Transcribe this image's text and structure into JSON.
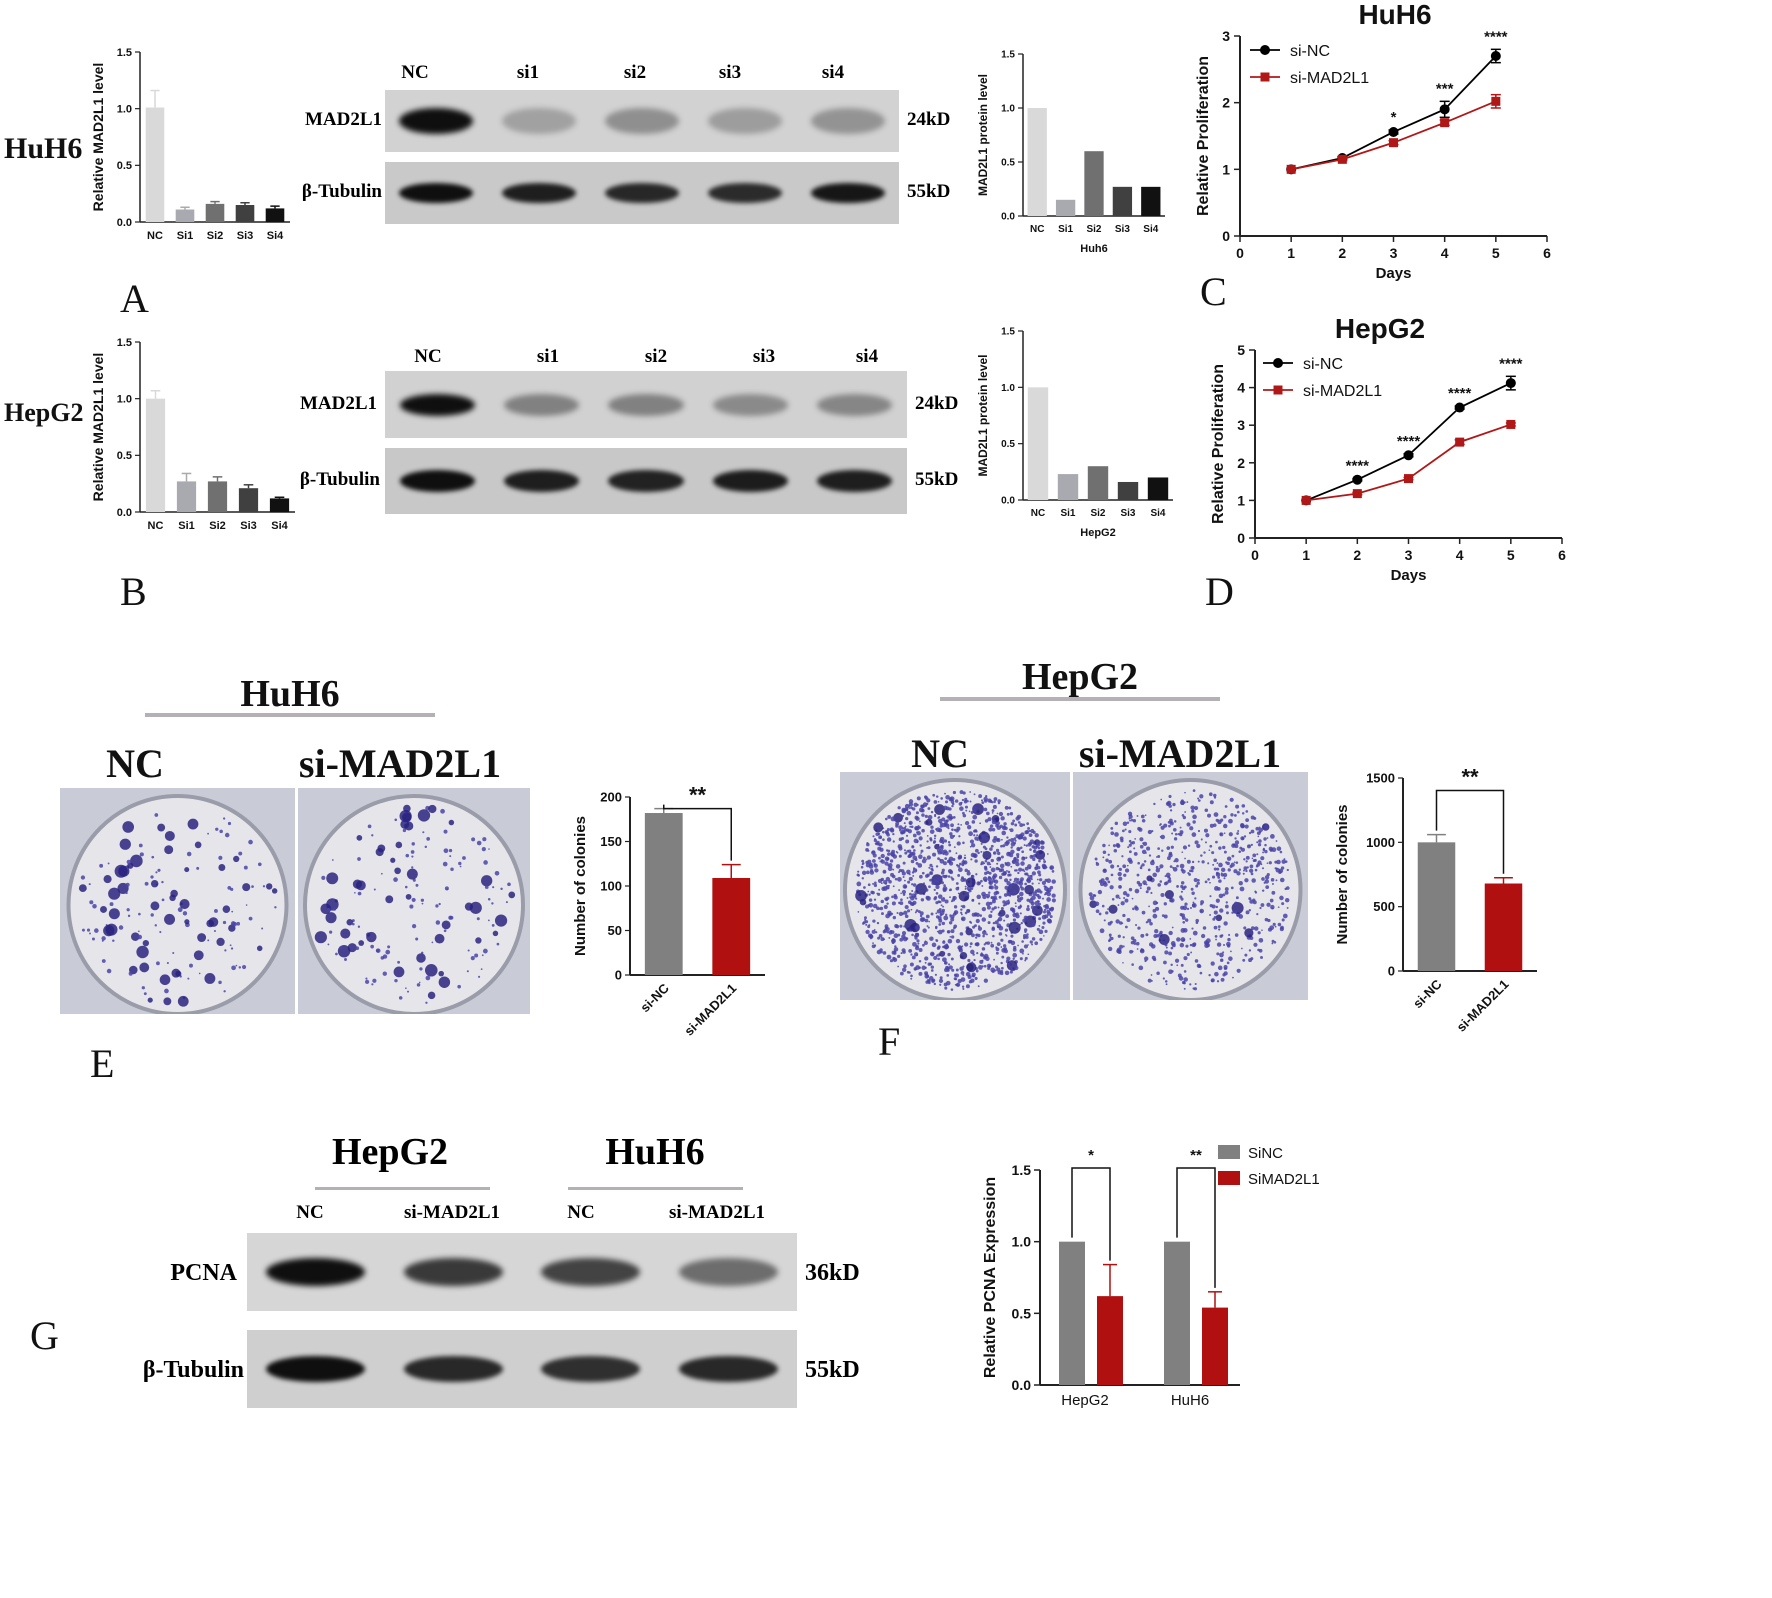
{
  "panels": {
    "A": {
      "letter": "A",
      "cell_label": "HuH6"
    },
    "B": {
      "letter": "B",
      "cell_label": "HepG2"
    },
    "C": {
      "letter": "C"
    },
    "D": {
      "letter": "D"
    },
    "E": {
      "letter": "E"
    },
    "F": {
      "letter": "F"
    },
    "G": {
      "letter": "G"
    }
  },
  "blot_A": {
    "lanes": [
      "NC",
      "si1",
      "si2",
      "si3",
      "si4"
    ],
    "rows": [
      "MAD2L1",
      "β-Tubulin"
    ],
    "sizes": [
      "24kD",
      "55kD"
    ],
    "mad2l1_intensity": [
      1.0,
      0.12,
      0.22,
      0.14,
      0.2
    ],
    "tubulin_intensity": [
      1.0,
      0.9,
      0.85,
      0.82,
      0.95
    ]
  },
  "blot_B": {
    "lanes": [
      "NC",
      "si1",
      "si2",
      "si3",
      "si4"
    ],
    "rows": [
      "MAD2L1",
      "β-Tubulin"
    ],
    "sizes": [
      "24kD",
      "55kD"
    ],
    "mad2l1_intensity": [
      1.0,
      0.3,
      0.3,
      0.25,
      0.28
    ],
    "tubulin_intensity": [
      1.0,
      0.9,
      0.88,
      0.92,
      0.9
    ]
  },
  "colony": {
    "E": {
      "group": "HuH6",
      "labels": [
        "NC",
        "si-MAD2L1"
      ]
    },
    "F": {
      "group": "HepG2",
      "labels": [
        "NC",
        "si-MAD2L1"
      ]
    }
  },
  "blot_G": {
    "groups": [
      "HepG2",
      "HuH6"
    ],
    "lanes": [
      "NC",
      "si-MAD2L1",
      "NC",
      "si-MAD2L1"
    ],
    "rows": [
      "PCNA",
      "β-Tubulin"
    ],
    "sizes": [
      "36kD",
      "55kD"
    ],
    "pcna_intensity": [
      1.0,
      0.75,
      0.7,
      0.45
    ],
    "tubulin_intensity": [
      1.0,
      0.85,
      0.8,
      0.85
    ]
  },
  "chart_data": [
    {
      "id": "A_qpcr",
      "type": "bar",
      "categories": [
        "NC",
        "Si1",
        "Si2",
        "Si3",
        "Si4"
      ],
      "values": [
        1.01,
        0.11,
        0.16,
        0.15,
        0.12
      ],
      "errors": [
        0.15,
        0.02,
        0.02,
        0.02,
        0.02
      ],
      "ylabel": "Relative MAD2L1 level",
      "ylim": [
        0,
        1.5
      ],
      "yticks": [
        "0.0",
        "0.5",
        "1.0",
        "1.5"
      ],
      "colors": [
        "#d9d9d9",
        "#a9a9b0",
        "#707070",
        "#404040",
        "#111111"
      ]
    },
    {
      "id": "A_protein",
      "type": "bar",
      "categories": [
        "NC",
        "Si1",
        "Si2",
        "Si3",
        "Si4"
      ],
      "values": [
        1.0,
        0.15,
        0.6,
        0.27,
        0.27
      ],
      "ylabel": "MAD2L1 protein level",
      "xlabel": "Huh6",
      "ylim": [
        0,
        1.5
      ],
      "yticks": [
        "0.0",
        "0.5",
        "1.0",
        "1.5"
      ],
      "colors": [
        "#d9d9d9",
        "#a9a9b0",
        "#707070",
        "#404040",
        "#111111"
      ]
    },
    {
      "id": "B_qpcr",
      "type": "bar",
      "categories": [
        "NC",
        "Si1",
        "Si2",
        "Si3",
        "Si4"
      ],
      "values": [
        1.0,
        0.27,
        0.27,
        0.21,
        0.12
      ],
      "errors": [
        0.07,
        0.07,
        0.04,
        0.03,
        0.01
      ],
      "ylabel": "Relative MAD2L1 level",
      "ylim": [
        0,
        1.5
      ],
      "yticks": [
        "0.0",
        "0.5",
        "1.0",
        "1.5"
      ],
      "colors": [
        "#d9d9d9",
        "#a9a9b0",
        "#707070",
        "#404040",
        "#111111"
      ]
    },
    {
      "id": "B_protein",
      "type": "bar",
      "categories": [
        "NC",
        "Si1",
        "Si2",
        "Si3",
        "Si4"
      ],
      "values": [
        1.0,
        0.23,
        0.3,
        0.16,
        0.2
      ],
      "ylabel": "MAD2L1 protein level",
      "xlabel": "HepG2",
      "ylim": [
        0,
        1.5
      ],
      "yticks": [
        "0.0",
        "0.5",
        "1.0",
        "1.5"
      ],
      "colors": [
        "#d9d9d9",
        "#a9a9b0",
        "#707070",
        "#404040",
        "#111111"
      ]
    },
    {
      "id": "C_prolif",
      "type": "line",
      "title": "HuH6",
      "x": [
        1,
        2,
        3,
        4,
        5
      ],
      "series": [
        {
          "name": "si-NC",
          "values": [
            1.0,
            1.17,
            1.56,
            1.9,
            2.7
          ],
          "errors": [
            0,
            0.02,
            0.03,
            0.12,
            0.1
          ],
          "color": "#000000",
          "marker": "circle"
        },
        {
          "name": "si-MAD2L1",
          "values": [
            1.0,
            1.15,
            1.4,
            1.7,
            2.02
          ],
          "errors": [
            0,
            0.02,
            0.03,
            0.04,
            0.1
          ],
          "color": "#b01818",
          "marker": "square"
        }
      ],
      "significance": [
        {
          "x": 3,
          "label": "*"
        },
        {
          "x": 4,
          "label": "***"
        },
        {
          "x": 5,
          "label": "****"
        }
      ],
      "xlabel": "Days",
      "ylabel": "Relative Proliferation",
      "xlim": [
        0,
        6
      ],
      "ylim": [
        0,
        3
      ],
      "xticks": [
        "0",
        "1",
        "2",
        "3",
        "4",
        "5",
        "6"
      ],
      "yticks": [
        "0",
        "1",
        "2",
        "3"
      ]
    },
    {
      "id": "D_prolif",
      "type": "line",
      "title": "HepG2",
      "x": [
        1,
        2,
        3,
        4,
        5
      ],
      "series": [
        {
          "name": "si-NC",
          "values": [
            1.0,
            1.55,
            2.2,
            3.47,
            4.12
          ],
          "errors": [
            0,
            0.03,
            0.04,
            0.04,
            0.18
          ],
          "color": "#000000",
          "marker": "circle"
        },
        {
          "name": "si-MAD2L1",
          "values": [
            1.0,
            1.18,
            1.58,
            2.55,
            3.02
          ],
          "errors": [
            0,
            0.03,
            0.03,
            0.06,
            0.04
          ],
          "color": "#b01818",
          "marker": "square"
        }
      ],
      "significance": [
        {
          "x": 2,
          "label": "****"
        },
        {
          "x": 3,
          "label": "****"
        },
        {
          "x": 4,
          "label": "****"
        },
        {
          "x": 5,
          "label": "****"
        }
      ],
      "xlabel": "Days",
      "ylabel": "Relative Proliferation",
      "xlim": [
        0,
        6
      ],
      "ylim": [
        0,
        5
      ],
      "xticks": [
        "0",
        "1",
        "2",
        "3",
        "4",
        "5",
        "6"
      ],
      "yticks": [
        "0",
        "1",
        "2",
        "3",
        "4",
        "5"
      ]
    },
    {
      "id": "E_colonies",
      "type": "bar",
      "categories": [
        "si-NC",
        "si-MAD2L1"
      ],
      "values": [
        182,
        109
      ],
      "errors": [
        5,
        15
      ],
      "ylabel": "Number of colonies",
      "ylim": [
        0,
        200
      ],
      "yticks": [
        "0",
        "50",
        "100",
        "150",
        "200"
      ],
      "colors": [
        "#808080",
        "#b01010"
      ],
      "significance": "**"
    },
    {
      "id": "F_colonies",
      "type": "bar",
      "categories": [
        "si-NC",
        "si-MAD2L1"
      ],
      "values": [
        1000,
        680
      ],
      "errors": [
        60,
        45
      ],
      "ylabel": "Number of colonies",
      "ylim": [
        0,
        1500
      ],
      "yticks": [
        "0",
        "500",
        "1000",
        "1500"
      ],
      "colors": [
        "#808080",
        "#b01010"
      ],
      "significance": "**"
    },
    {
      "id": "G_pcna",
      "type": "bar",
      "categories": [
        "HepG2",
        "HuH6"
      ],
      "series": [
        {
          "name": "SiNC",
          "values": [
            1.0,
            1.0
          ],
          "errors": [
            0,
            0
          ],
          "color": "#808080"
        },
        {
          "name": "SiMAD2L1",
          "values": [
            0.62,
            0.54
          ],
          "errors": [
            0.22,
            0.11
          ],
          "color": "#b01010"
        }
      ],
      "significance": [
        "*",
        "**"
      ],
      "ylabel": "Relative PCNA Expression",
      "ylim": [
        0,
        1.5
      ],
      "yticks": [
        "0.0",
        "0.5",
        "1.0",
        "1.5"
      ],
      "legend": "top-right"
    }
  ]
}
